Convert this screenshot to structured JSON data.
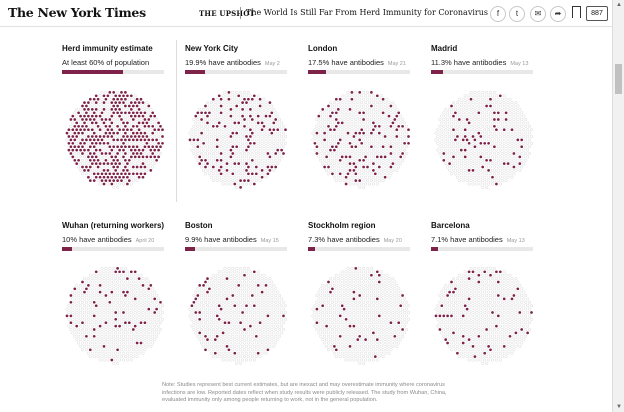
{
  "header": {
    "logo": "The New York Times",
    "section": "THE UPSHOT",
    "headline": "The World Is Still Far From Herd Immunity for Coronavirus",
    "share_icons": [
      {
        "name": "facebook-icon",
        "glyph": "f"
      },
      {
        "name": "twitter-icon",
        "glyph": "t"
      },
      {
        "name": "email-icon",
        "glyph": "✉"
      },
      {
        "name": "share-icon",
        "glyph": "➦"
      }
    ],
    "comment_count": "887"
  },
  "accent_color": "#7d2248",
  "panels": [
    {
      "title": "Herd immunity estimate",
      "subtitle": "At least 60% of population",
      "date": "",
      "fraction": 0.6
    },
    {
      "title": "New York City",
      "subtitle": "19.9% have antibodies",
      "date": "May 2",
      "fraction": 0.199
    },
    {
      "title": "London",
      "subtitle": "17.5% have antibodies",
      "date": "May 21",
      "fraction": 0.175
    },
    {
      "title": "Madrid",
      "subtitle": "11.3% have antibodies",
      "date": "May 13",
      "fraction": 0.113
    },
    {
      "title": "Wuhan (returning workers)",
      "subtitle": "10% have antibodies",
      "date": "April 20",
      "fraction": 0.1
    },
    {
      "title": "Boston",
      "subtitle": "9.9% have antibodies",
      "date": "May 15",
      "fraction": 0.099
    },
    {
      "title": "Stockholm region",
      "subtitle": "7.3% have antibodies",
      "date": "May 20",
      "fraction": 0.073
    },
    {
      "title": "Barcelona",
      "subtitle": "7.1% have antibodies",
      "date": "May 13",
      "fraction": 0.071
    }
  ],
  "note": "Note: Studies represent best current estimates, but are inexact and may overestimate immunity where coronavirus infections are low. Reported dates reflect when study results were publicly released. The study from Wuhan, China, evaluated immunity only among people returning to work, not in the general population."
}
